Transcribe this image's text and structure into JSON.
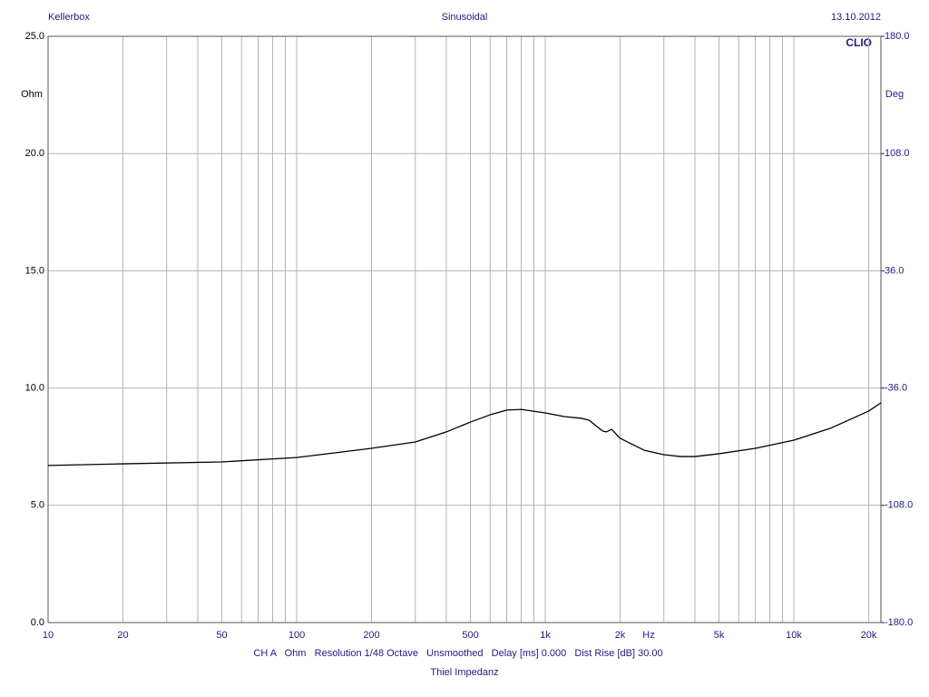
{
  "chart_data": {
    "type": "line",
    "header_left": "Kellerbox",
    "title": "Sinusoidal",
    "header_right": "13.10.2012",
    "brand": "CLIO",
    "ylabel": "Ohm",
    "y2label": "Deg",
    "xlabel": "Hz",
    "footer": "CH A   Ohm   Resolution 1/48 Octave   Unsmoothed   Delay [ms] 0.000   Dist Rise [dB] 30.00",
    "caption": "Thiel Impedanz",
    "xscale": "log",
    "grid": true,
    "color": "#000000",
    "xlim": [
      10,
      22400
    ],
    "ylim": [
      0,
      25
    ],
    "y2lim": [
      -180,
      180
    ],
    "xticks": [
      10,
      20,
      50,
      100,
      200,
      500,
      {
        "value": 1000,
        "label": "1k"
      },
      {
        "value": 2000,
        "label": "2k"
      },
      {
        "value": 5000,
        "label": "5k"
      },
      {
        "value": 10000,
        "label": "10k"
      },
      {
        "value": 20000,
        "label": "20k"
      }
    ],
    "xminor": [
      30,
      40,
      60,
      70,
      80,
      90,
      300,
      400,
      600,
      700,
      800,
      900,
      3000,
      4000,
      6000,
      7000,
      8000,
      9000
    ],
    "yticks": [
      {
        "value": 0,
        "label": "0.0"
      },
      {
        "value": 5,
        "label": "5.0"
      },
      {
        "value": 10,
        "label": "10.0"
      },
      {
        "value": 15,
        "label": "15.0"
      },
      {
        "value": 20,
        "label": "20.0"
      },
      {
        "value": 25,
        "label": "25.0"
      }
    ],
    "y2ticks": [
      {
        "value": 180,
        "label": "180.0"
      },
      {
        "value": 108,
        "label": "108.0"
      },
      {
        "value": 36,
        "label": "36.0"
      },
      {
        "value": -36,
        "label": "-36.0"
      },
      {
        "value": -108,
        "label": "-108.0"
      },
      {
        "value": -180,
        "label": "-180.0"
      }
    ],
    "x": [
      10,
      20,
      50,
      100,
      200,
      300,
      400,
      500,
      600,
      700,
      800,
      1000,
      1200,
      1400,
      1500,
      1700,
      1760,
      1850,
      2000,
      2500,
      3000,
      3500,
      4000,
      5000,
      7000,
      10000,
      14000,
      20000,
      22400
    ],
    "values": [
      6.7,
      6.77,
      6.85,
      7.04,
      7.43,
      7.7,
      8.13,
      8.55,
      8.86,
      9.06,
      9.09,
      8.94,
      8.78,
      8.71,
      8.63,
      8.17,
      8.13,
      8.24,
      7.86,
      7.35,
      7.16,
      7.08,
      7.08,
      7.2,
      7.43,
      7.78,
      8.28,
      9.02,
      9.37
    ]
  }
}
